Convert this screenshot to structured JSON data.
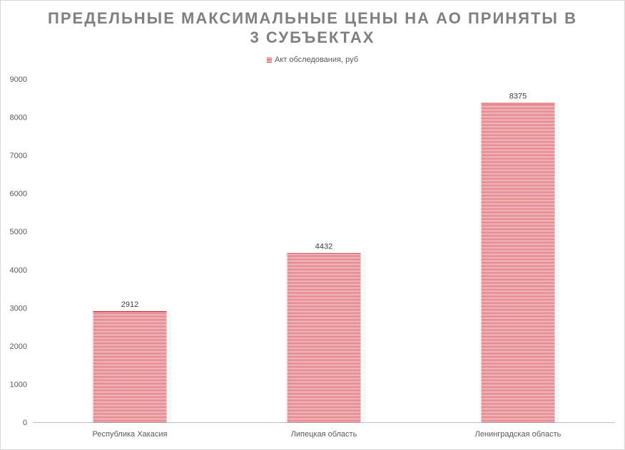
{
  "chart_data": {
    "type": "bar",
    "title_lines": [
      "ПРЕДЕЛЬНЫЕ МАКСИМАЛЬНЫЕ ЦЕНЫ НА АО ПРИНЯТЫ В",
      "3 СУБЪЕКТАХ"
    ],
    "categories": [
      "Республика Хакасия",
      "Липецкая область",
      "Ленинградская область"
    ],
    "series": [
      {
        "name": "Акт обследования, руб",
        "values": [
          2912,
          4432,
          8375
        ],
        "color": "#d9434f"
      }
    ],
    "ylim": [
      0,
      9000
    ],
    "yticks": [
      0,
      1000,
      2000,
      3000,
      4000,
      5000,
      6000,
      7000,
      8000,
      9000
    ],
    "grid": false,
    "legend_position": "top",
    "data_labels": true
  }
}
